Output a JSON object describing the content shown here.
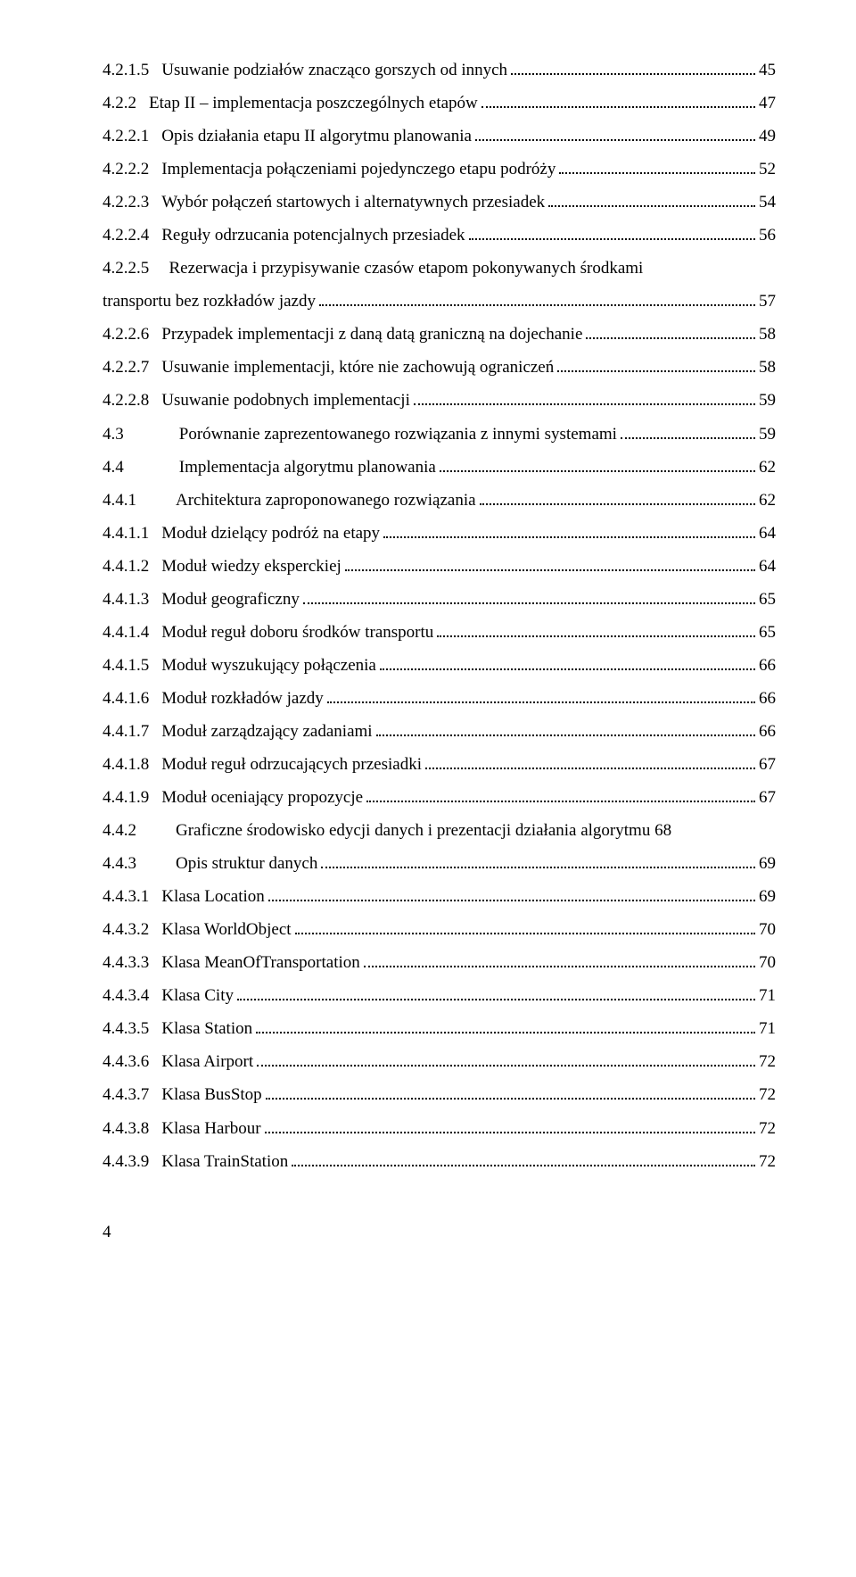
{
  "entries": [
    {
      "num": "4.2.1.5",
      "title": "Usuwanie podziałów znacząco gorszych od innych",
      "page": "45"
    },
    {
      "num": "4.2.2",
      "title": "Etap II – implementacja poszczególnych etapów",
      "page": "47"
    },
    {
      "num": "4.2.2.1",
      "title": "Opis działania etapu II algorytmu planowania",
      "page": "49"
    },
    {
      "num": "4.2.2.2",
      "title": "Implementacja połączeniami pojedynczego etapu podróży",
      "page": "52"
    },
    {
      "num": "4.2.2.3",
      "title": "Wybór połączeń startowych i alternatywnych przesiadek",
      "page": "54"
    },
    {
      "num": "4.2.2.4",
      "title": "Reguły odrzucania potencjalnych przesiadek",
      "page": "56"
    },
    {
      "num": "4.2.2.5",
      "title_line1": "Rezerwacja i przypisywanie czasów etapom pokonywanych środkami",
      "title_line2": "transportu bez rozkładów jazdy",
      "page": "57",
      "wrap": true
    },
    {
      "num": "4.2.2.6",
      "title": "Przypadek implementacji z daną datą graniczną na dojechanie",
      "page": "58"
    },
    {
      "num": "4.2.2.7",
      "title": "Usuwanie implementacji, które nie zachowują ograniczeń",
      "page": "58"
    },
    {
      "num": "4.2.2.8",
      "title": "Usuwanie podobnych implementacji",
      "page": "59"
    },
    {
      "num": "4.3",
      "title": "Porównanie zaprezentowanego rozwiązania z innymi systemami",
      "page": "59",
      "gap": true
    },
    {
      "num": "4.4",
      "title": "Implementacja algorytmu planowania",
      "page": "62",
      "gap": true
    },
    {
      "num": "4.4.1",
      "title": "Architektura zaproponowanego rozwiązania",
      "page": "62",
      "gap2": true
    },
    {
      "num": "4.4.1.1",
      "title": "Moduł dzielący podróż na etapy",
      "page": "64"
    },
    {
      "num": "4.4.1.2",
      "title": "Moduł wiedzy eksperckiej",
      "page": "64"
    },
    {
      "num": "4.4.1.3",
      "title": "Moduł geograficzny",
      "page": "65"
    },
    {
      "num": "4.4.1.4",
      "title": "Moduł reguł doboru środków transportu",
      "page": "65"
    },
    {
      "num": "4.4.1.5",
      "title": "Moduł wyszukujący połączenia",
      "page": "66"
    },
    {
      "num": "4.4.1.6",
      "title": "Moduł rozkładów jazdy",
      "page": "66"
    },
    {
      "num": "4.4.1.7",
      "title": "Moduł zarządzający zadaniami",
      "page": "66"
    },
    {
      "num": "4.4.1.8",
      "title": "Moduł reguł odrzucających przesiadki",
      "page": "67"
    },
    {
      "num": "4.4.1.9",
      "title": "Moduł oceniający propozycje",
      "page": "67"
    },
    {
      "num": "4.4.2",
      "title": "Graficzne środowisko edycji danych i prezentacji działania algorytmu",
      "page": "68",
      "gap2": true,
      "nodots": true
    },
    {
      "num": "4.4.3",
      "title": "Opis struktur danych",
      "page": "69",
      "gap2": true
    },
    {
      "num": "4.4.3.1",
      "title": "Klasa Location",
      "page": "69"
    },
    {
      "num": "4.4.3.2",
      "title": "Klasa WorldObject",
      "page": "70"
    },
    {
      "num": "4.4.3.3",
      "title": "Klasa MeanOfTransportation",
      "page": "70"
    },
    {
      "num": "4.4.3.4",
      "title": "Klasa City",
      "page": "71"
    },
    {
      "num": "4.4.3.5",
      "title": "Klasa Station",
      "page": "71"
    },
    {
      "num": "4.4.3.6",
      "title": "Klasa Airport",
      "page": "72"
    },
    {
      "num": "4.4.3.7",
      "title": "Klasa BusStop",
      "page": "72"
    },
    {
      "num": "4.4.3.8",
      "title": "Klasa Harbour",
      "page": "72"
    },
    {
      "num": "4.4.3.9",
      "title": "Klasa TrainStation",
      "page": "72"
    }
  ],
  "page_number": "4"
}
